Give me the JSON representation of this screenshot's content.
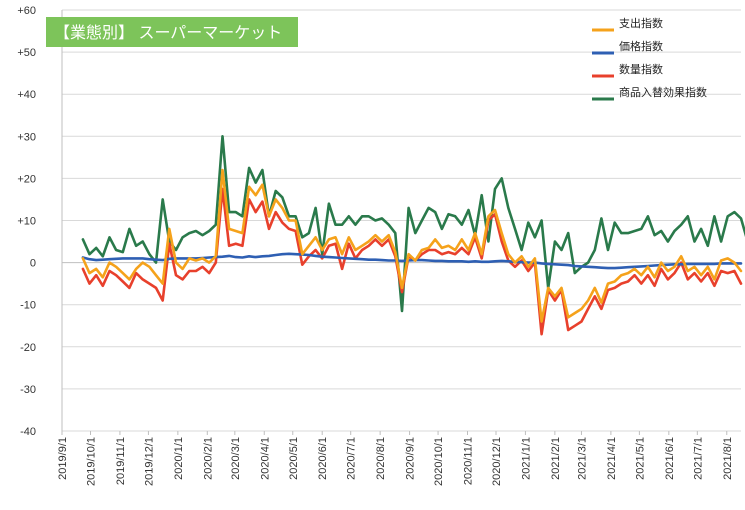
{
  "chart_data": {
    "type": "line",
    "title": "【業態別】 スーパーマーケット",
    "title_bg": "#7dc45a",
    "ylim": [
      -40,
      60
    ],
    "yticks": [
      -40,
      -30,
      -20,
      -10,
      0,
      10,
      20,
      30,
      40,
      50,
      60
    ],
    "ytick_labels": [
      "-40",
      "-30",
      "-20",
      "-10",
      "0",
      "+10",
      "+20",
      "+30",
      "+40",
      "+50",
      "+60"
    ],
    "grid": "horizontal",
    "legend_position": "top-right",
    "x_start": "2019-09-23",
    "xticks": [
      "2019/9/1",
      "2019/10/1",
      "2019/11/1",
      "2019/12/1",
      "2020/1/1",
      "2020/2/1",
      "2020/3/1",
      "2020/4/1",
      "2020/5/1",
      "2020/6/1",
      "2020/7/1",
      "2020/8/1",
      "2020/9/1",
      "2020/10/1",
      "2020/11/1",
      "2020/12/1",
      "2021/1/1",
      "2021/2/1",
      "2021/3/1",
      "2021/4/1",
      "2021/5/1",
      "2021/6/1",
      "2021/7/1",
      "2021/8/1",
      "2021/9/1"
    ],
    "series": [
      {
        "name": "支出指数",
        "color": "#f5a21b",
        "values": [
          1,
          -2.5,
          -1.5,
          -3.5,
          0,
          -1,
          -2.5,
          -4,
          -1.5,
          0,
          -1,
          -3,
          -5,
          8,
          0,
          -1.5,
          1,
          0.5,
          1,
          0,
          1.5,
          22,
          8,
          7.5,
          7,
          18,
          16,
          18.5,
          11,
          15,
          13,
          10,
          10,
          2,
          4,
          6,
          3,
          5.5,
          6,
          2,
          6,
          3,
          4,
          5,
          6.5,
          5,
          6.5,
          2.5,
          -6,
          2,
          0.5,
          3,
          3.5,
          5.5,
          3.5,
          4,
          3,
          5.5,
          3,
          7,
          2,
          11,
          12.5,
          7,
          2,
          0,
          1.5,
          -1,
          1,
          -14,
          -6,
          -8,
          -6,
          -13,
          -12,
          -11,
          -9,
          -6,
          -9.5,
          -5,
          -4.5,
          -3,
          -2.5,
          -1.5,
          -3,
          -1,
          -3.5,
          0,
          -2,
          -1,
          1.5,
          -2,
          -1,
          -3,
          -1,
          -4,
          0.5,
          1,
          0,
          -2
        ]
      },
      {
        "name": "価格指数",
        "color": "#2e5fb3",
        "values": [
          1.2,
          0.8,
          0.6,
          0.7,
          0.8,
          0.9,
          1,
          1,
          1,
          1,
          0.8,
          0.7,
          0.6,
          0.9,
          1,
          1,
          1,
          1,
          1.1,
          1.2,
          1.3,
          1.4,
          1.6,
          1.3,
          1.2,
          1.5,
          1.3,
          1.5,
          1.6,
          1.8,
          2,
          2.1,
          2,
          1.9,
          1.8,
          1.6,
          1.4,
          1.3,
          1.2,
          1.1,
          1,
          0.9,
          0.8,
          0.7,
          0.7,
          0.6,
          0.5,
          0.5,
          0.4,
          0.5,
          0.6,
          0.6,
          0.5,
          0.4,
          0.4,
          0.3,
          0.3,
          0.3,
          0.2,
          0.3,
          0.2,
          0.2,
          0.3,
          0.4,
          0.3,
          0.2,
          0.1,
          0,
          0,
          -0.2,
          -0.3,
          -0.4,
          -0.5,
          -0.6,
          -0.8,
          -0.9,
          -1,
          -1.1,
          -1.2,
          -1.3,
          -1.3,
          -1.2,
          -1.1,
          -1,
          -0.9,
          -0.8,
          -0.7,
          -0.6,
          -0.5,
          -0.4,
          -0.4,
          -0.3,
          -0.3,
          -0.3,
          -0.3,
          -0.3,
          -0.2,
          -0.2,
          -0.2,
          -0.2
        ]
      },
      {
        "name": "数量指数",
        "color": "#e8402c",
        "values": [
          -1.5,
          -5,
          -3,
          -5.5,
          -2,
          -3,
          -4.5,
          -6,
          -2.5,
          -4,
          -5,
          -6,
          -9,
          4.5,
          -3,
          -4,
          -2,
          -2,
          -1,
          -2.5,
          0,
          17.5,
          4,
          4.5,
          4,
          15,
          12,
          14.5,
          8,
          12,
          9.5,
          8,
          7.5,
          -0.5,
          1.5,
          3,
          1,
          4,
          4.5,
          -1.5,
          4.5,
          1,
          3,
          4,
          5.5,
          4,
          5.5,
          1.5,
          -7,
          1.5,
          0.5,
          2,
          3,
          3,
          2,
          2.5,
          2,
          3.5,
          2,
          6,
          1,
          10,
          11.5,
          5,
          0.5,
          -1,
          0.5,
          -2,
          0,
          -17,
          -6.5,
          -9,
          -6.5,
          -16,
          -15,
          -14,
          -11,
          -8,
          -11,
          -6.5,
          -6,
          -5,
          -4.5,
          -3,
          -5,
          -3,
          -5.5,
          -1.5,
          -4,
          -2.5,
          0,
          -4,
          -2.5,
          -4.5,
          -2.5,
          -5.5,
          -2,
          -2.5,
          -2,
          -5
        ]
      },
      {
        "name": "商品入替効果指数",
        "color": "#2a7a4b",
        "values": [
          5.5,
          2,
          3.5,
          1.5,
          6,
          3,
          2.5,
          8,
          4,
          5,
          2,
          0,
          15,
          5,
          3,
          6,
          7,
          7.5,
          6.5,
          7.5,
          9,
          30,
          12,
          12,
          11,
          22.5,
          19,
          22,
          11,
          17,
          15.5,
          11,
          11,
          6,
          7,
          13,
          2,
          14,
          9,
          9,
          11,
          9,
          11,
          11,
          10,
          10.5,
          9,
          7,
          -11.5,
          13,
          7,
          10,
          13,
          12,
          8,
          11.5,
          11,
          9,
          12.5,
          6.5,
          16,
          5,
          17.5,
          20,
          13,
          8,
          3,
          9.5,
          6,
          10,
          -6,
          5,
          3,
          7,
          -2.5,
          -1,
          0,
          3,
          10.5,
          3,
          9.5,
          7,
          7,
          7.5,
          8,
          11,
          6.5,
          7.5,
          5,
          7.5,
          9,
          11,
          5,
          8,
          4,
          11,
          5,
          11,
          12,
          10.5,
          5
        ]
      }
    ]
  }
}
